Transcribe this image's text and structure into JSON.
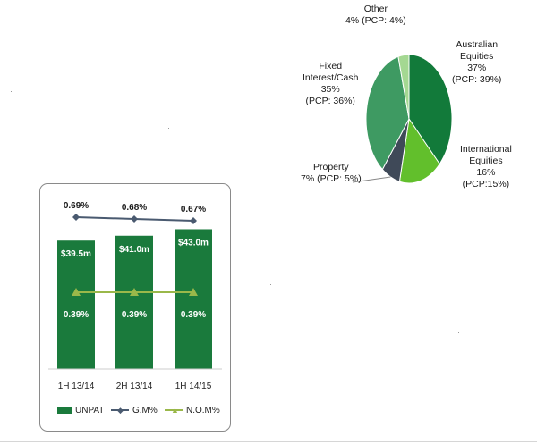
{
  "chart_data": [
    {
      "type": "pie",
      "slices": [
        {
          "label_lines": [
            "Australian",
            "Equities",
            "37%",
            "(PCP: 39%)"
          ],
          "value": 37,
          "pcp": 39,
          "color": "#127a3a"
        },
        {
          "label_lines": [
            "International",
            "Equities",
            "16%",
            "(PCP:15%)"
          ],
          "value": 16,
          "pcp": 15,
          "color": "#62bf2c"
        },
        {
          "label_lines": [
            "Property",
            "7% (PCP: 5%)"
          ],
          "value": 7,
          "pcp": 5,
          "color": "#3f4958"
        },
        {
          "label_lines": [
            "Fixed",
            "Interest/Cash",
            "35%",
            "(PCP: 36%)"
          ],
          "value": 35,
          "pcp": 36,
          "color": "#3e9a62"
        },
        {
          "label_lines": [
            "Other",
            "4% (PCP: 4%)"
          ],
          "value": 4,
          "pcp": 4,
          "color": "#a4d892"
        }
      ]
    },
    {
      "type": "bar",
      "categories": [
        "1H 13/14",
        "2H 13/14",
        "1H 14/15"
      ],
      "series": [
        {
          "name": "UNPAT",
          "type": "bar",
          "values": [
            39.5,
            41.0,
            43.0
          ],
          "labels": [
            "$39.5m",
            "$41.0m",
            "$43.0m"
          ],
          "color": "#1a7a3c"
        },
        {
          "name": "G.M%",
          "type": "line",
          "values": [
            0.69,
            0.68,
            0.67
          ],
          "labels": [
            "0.69%",
            "0.68%",
            "0.67%"
          ],
          "color": "#4a5a70"
        },
        {
          "name": "N.O.M%",
          "type": "line",
          "values": [
            0.39,
            0.39,
            0.39
          ],
          "labels": [
            "0.39%",
            "0.39%",
            "0.39%"
          ],
          "color": "#9ab84a"
        }
      ]
    }
  ]
}
